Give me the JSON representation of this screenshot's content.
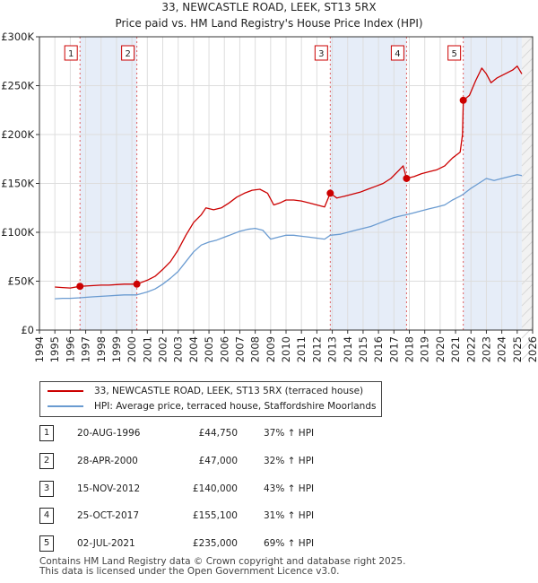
{
  "chart_data": {
    "type": "line",
    "title": "33, NEWCASTLE ROAD, LEEK, ST13 5RX",
    "subtitle": "Price paid vs. HM Land Registry's House Price Index (HPI)",
    "xlim": [
      1994,
      2026
    ],
    "ylim": [
      0,
      300000
    ],
    "x_ticks": [
      "1994",
      "1995",
      "1996",
      "1997",
      "1998",
      "1999",
      "2000",
      "2001",
      "2002",
      "2003",
      "2004",
      "2005",
      "2006",
      "2007",
      "2008",
      "2009",
      "2010",
      "2011",
      "2012",
      "2013",
      "2014",
      "2015",
      "2016",
      "2017",
      "2018",
      "2019",
      "2020",
      "2021",
      "2022",
      "2023",
      "2024",
      "2025",
      "2026"
    ],
    "y_ticks": [
      {
        "value": 0,
        "label": "£0"
      },
      {
        "value": 50000,
        "label": "£50K"
      },
      {
        "value": 100000,
        "label": "£100K"
      },
      {
        "value": 150000,
        "label": "£150K"
      },
      {
        "value": 200000,
        "label": "£200K"
      },
      {
        "value": 250000,
        "label": "£250K"
      },
      {
        "value": 300000,
        "label": "£300K"
      }
    ],
    "sale_periods": [
      [
        1996.63,
        2000.32
      ],
      [
        2012.87,
        2017.82
      ],
      [
        2021.5,
        2025.3
      ]
    ],
    "future_start": 2025.3,
    "series": [
      {
        "name": "33, NEWCASTLE ROAD, LEEK, ST13 5RX (terraced house)",
        "color": "#cc0000",
        "points": [
          [
            1995.0,
            44000
          ],
          [
            1995.5,
            43500
          ],
          [
            1996.0,
            43000
          ],
          [
            1996.63,
            44750
          ],
          [
            1997.0,
            45000
          ],
          [
            1997.5,
            45500
          ],
          [
            1998.0,
            46000
          ],
          [
            1998.5,
            46000
          ],
          [
            1999.0,
            46500
          ],
          [
            1999.5,
            47000
          ],
          [
            2000.32,
            47000
          ],
          [
            2001.0,
            51000
          ],
          [
            2001.5,
            55000
          ],
          [
            2002.0,
            62000
          ],
          [
            2002.5,
            70000
          ],
          [
            2003.0,
            82000
          ],
          [
            2003.5,
            97000
          ],
          [
            2004.0,
            110000
          ],
          [
            2004.5,
            118000
          ],
          [
            2004.8,
            125000
          ],
          [
            2005.3,
            123000
          ],
          [
            2005.8,
            125000
          ],
          [
            2006.3,
            130000
          ],
          [
            2006.8,
            136000
          ],
          [
            2007.3,
            140000
          ],
          [
            2007.8,
            143000
          ],
          [
            2008.3,
            144000
          ],
          [
            2008.8,
            140000
          ],
          [
            2009.2,
            128000
          ],
          [
            2009.6,
            130000
          ],
          [
            2010.0,
            133000
          ],
          [
            2010.5,
            133000
          ],
          [
            2011.0,
            132000
          ],
          [
            2011.5,
            130000
          ],
          [
            2012.0,
            128000
          ],
          [
            2012.5,
            126000
          ],
          [
            2012.87,
            140000
          ],
          [
            2013.3,
            135000
          ],
          [
            2013.8,
            137000
          ],
          [
            2014.3,
            139000
          ],
          [
            2014.8,
            141000
          ],
          [
            2015.3,
            144000
          ],
          [
            2015.8,
            147000
          ],
          [
            2016.3,
            150000
          ],
          [
            2016.8,
            155000
          ],
          [
            2017.3,
            163000
          ],
          [
            2017.6,
            168000
          ],
          [
            2017.82,
            155100
          ],
          [
            2018.3,
            157000
          ],
          [
            2018.8,
            160000
          ],
          [
            2019.3,
            162000
          ],
          [
            2019.8,
            164000
          ],
          [
            2020.3,
            168000
          ],
          [
            2020.8,
            176000
          ],
          [
            2021.3,
            182000
          ],
          [
            2021.45,
            200000
          ],
          [
            2021.5,
            235000
          ],
          [
            2021.9,
            240000
          ],
          [
            2022.3,
            255000
          ],
          [
            2022.7,
            268000
          ],
          [
            2023.0,
            262000
          ],
          [
            2023.3,
            253000
          ],
          [
            2023.7,
            258000
          ],
          [
            2024.2,
            262000
          ],
          [
            2024.7,
            266000
          ],
          [
            2025.0,
            270000
          ],
          [
            2025.3,
            262000
          ]
        ]
      },
      {
        "name": "HPI: Average price, terraced house, Staffordshire Moorlands",
        "color": "#6a9bd1",
        "points": [
          [
            1995.0,
            32000
          ],
          [
            1995.5,
            32500
          ],
          [
            1996.0,
            32500
          ],
          [
            1996.63,
            33000
          ],
          [
            1997.0,
            33500
          ],
          [
            1997.5,
            34000
          ],
          [
            1998.0,
            34500
          ],
          [
            1998.5,
            35000
          ],
          [
            1999.0,
            35500
          ],
          [
            1999.5,
            36000
          ],
          [
            2000.32,
            36000
          ],
          [
            2001.0,
            39000
          ],
          [
            2001.5,
            42000
          ],
          [
            2002.0,
            47000
          ],
          [
            2002.5,
            53000
          ],
          [
            2003.0,
            60000
          ],
          [
            2003.5,
            70000
          ],
          [
            2004.0,
            80000
          ],
          [
            2004.5,
            87000
          ],
          [
            2005.0,
            90000
          ],
          [
            2005.5,
            92000
          ],
          [
            2006.0,
            95000
          ],
          [
            2006.5,
            98000
          ],
          [
            2007.0,
            101000
          ],
          [
            2007.5,
            103000
          ],
          [
            2008.0,
            104000
          ],
          [
            2008.5,
            102000
          ],
          [
            2009.0,
            93000
          ],
          [
            2009.5,
            95000
          ],
          [
            2010.0,
            97000
          ],
          [
            2010.5,
            97000
          ],
          [
            2011.0,
            96000
          ],
          [
            2011.5,
            95000
          ],
          [
            2012.0,
            94000
          ],
          [
            2012.5,
            93000
          ],
          [
            2012.87,
            97000
          ],
          [
            2013.5,
            98000
          ],
          [
            2014.0,
            100000
          ],
          [
            2014.5,
            102000
          ],
          [
            2015.0,
            104000
          ],
          [
            2015.5,
            106000
          ],
          [
            2016.0,
            109000
          ],
          [
            2016.5,
            112000
          ],
          [
            2017.0,
            115000
          ],
          [
            2017.5,
            117000
          ],
          [
            2017.82,
            118000
          ],
          [
            2018.3,
            120000
          ],
          [
            2018.8,
            122000
          ],
          [
            2019.3,
            124000
          ],
          [
            2019.8,
            126000
          ],
          [
            2020.3,
            128000
          ],
          [
            2020.8,
            133000
          ],
          [
            2021.3,
            137000
          ],
          [
            2021.5,
            139000
          ],
          [
            2022.0,
            145000
          ],
          [
            2022.5,
            150000
          ],
          [
            2023.0,
            155000
          ],
          [
            2023.5,
            153000
          ],
          [
            2024.0,
            155000
          ],
          [
            2024.5,
            157000
          ],
          [
            2025.0,
            159000
          ],
          [
            2025.3,
            158000
          ]
        ]
      }
    ],
    "transactions": [
      {
        "id": "1",
        "x": 1996.63,
        "value": 44750
      },
      {
        "id": "2",
        "x": 2000.32,
        "value": 47000
      },
      {
        "id": "3",
        "x": 2012.87,
        "value": 140000
      },
      {
        "id": "4",
        "x": 2017.82,
        "value": 155100
      },
      {
        "id": "5",
        "x": 2021.5,
        "value": 235000
      }
    ]
  },
  "legend": {
    "property_label": "33, NEWCASTLE ROAD, LEEK, ST13 5RX (terraced house)",
    "hpi_label": "HPI: Average price, terraced house, Staffordshire Moorlands",
    "property_color": "#cc0000",
    "hpi_color": "#6a9bd1"
  },
  "table": [
    {
      "num": "1",
      "date": "20-AUG-1996",
      "price": "£44,750",
      "hpi": "37% ↑ HPI"
    },
    {
      "num": "2",
      "date": "28-APR-2000",
      "price": "£47,000",
      "hpi": "32% ↑ HPI"
    },
    {
      "num": "3",
      "date": "15-NOV-2012",
      "price": "£140,000",
      "hpi": "43% ↑ HPI"
    },
    {
      "num": "4",
      "date": "25-OCT-2017",
      "price": "£155,100",
      "hpi": "31% ↑ HPI"
    },
    {
      "num": "5",
      "date": "02-JUL-2021",
      "price": "£235,000",
      "hpi": "69% ↑ HPI"
    }
  ],
  "footer": {
    "line1": "Contains HM Land Registry data © Crown copyright and database right 2025.",
    "line2": "This data is licensed under the Open Government Licence v3.0."
  }
}
